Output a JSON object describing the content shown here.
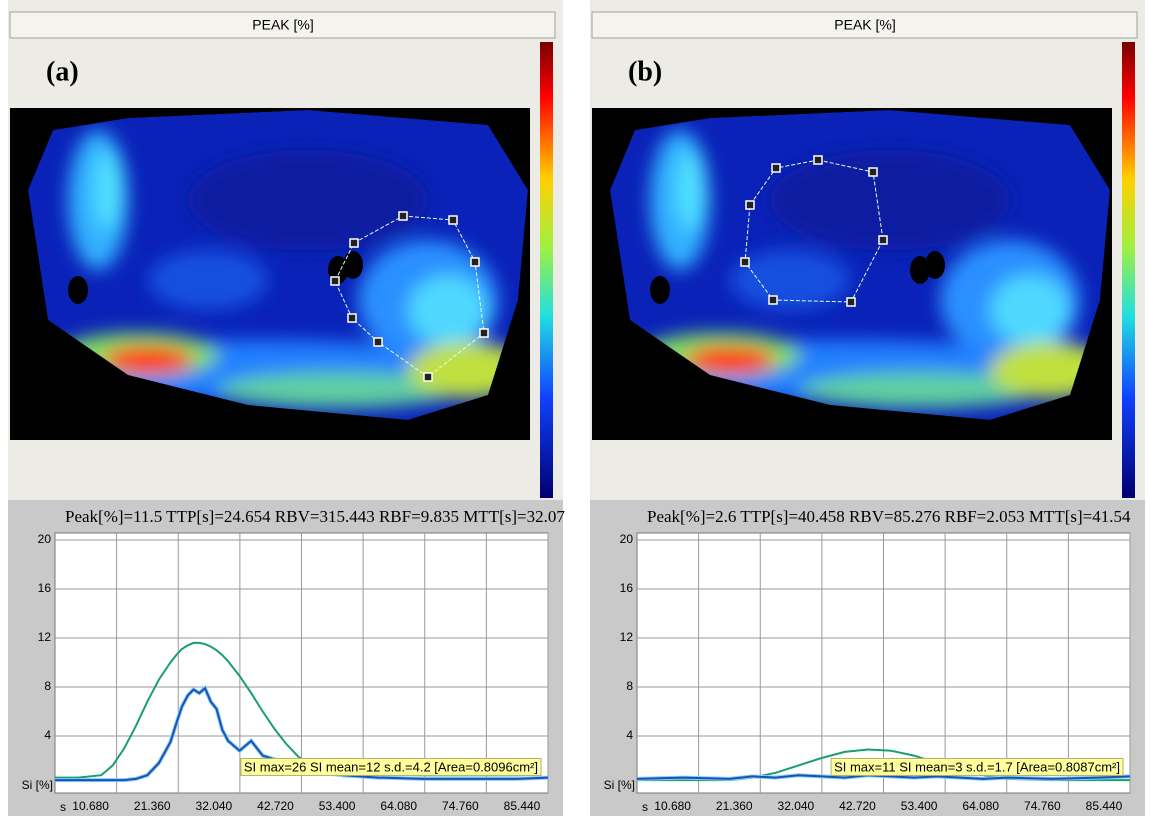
{
  "chart_data": [
    {
      "type": "line",
      "image_title": "PEAK [%]",
      "panel_label": "(a)",
      "title": "Peak[%]=11.5  TTP[s]=24.654  RBV=315.443  RBF=9.835  MTT[s]=32.07",
      "x_label": "s",
      "y_label": "Si [%]",
      "annotation": "SI max=26  SI mean=12  s.d.=4.2  [Area=0.8096cm²]",
      "x": [
        0,
        4,
        8,
        10,
        12,
        14,
        16,
        18,
        20,
        21,
        22,
        23,
        24,
        25,
        26,
        27,
        28,
        29,
        30,
        32,
        34,
        36,
        38,
        40,
        42,
        44,
        46,
        50,
        56,
        64,
        72,
        80,
        85.44
      ],
      "series": [
        {
          "color": "#1a9e6e",
          "values": [
            0.6,
            0.6,
            0.8,
            1.6,
            3,
            4.8,
            6.8,
            8.6,
            10,
            10.6,
            11.1,
            11.4,
            11.6,
            11.6,
            11.5,
            11.3,
            11,
            10.6,
            10.1,
            8.9,
            7.5,
            6,
            4.6,
            3.4,
            2.4,
            1.6,
            1.1,
            0.7,
            0.6,
            0.6,
            0.6,
            0.6,
            0.6
          ]
        },
        {
          "color": "#1f4fb0",
          "values": [
            0.4,
            0.4,
            0.4,
            0.4,
            0.4,
            0.5,
            0.8,
            1.8,
            3.5,
            5,
            6.4,
            7.3,
            7.8,
            7.5,
            7.9,
            6.8,
            6.2,
            4.5,
            3.6,
            2.8,
            3.6,
            2.4,
            2.1,
            1.8,
            1.5,
            1.2,
            1.0,
            0.8,
            0.6,
            0.5,
            0.5,
            0.5,
            0.6
          ]
        }
      ],
      "xlim": [
        0,
        85.44
      ],
      "xticks": [
        {
          "value": 10.68,
          "label": "10.680"
        },
        {
          "value": 21.36,
          "label": "21.360"
        },
        {
          "value": 32.04,
          "label": "32.040"
        },
        {
          "value": 42.72,
          "label": "42.720"
        },
        {
          "value": 53.4,
          "label": "53.400"
        },
        {
          "value": 64.08,
          "label": "64.080"
        },
        {
          "value": 74.76,
          "label": "74.760"
        },
        {
          "value": 85.44,
          "label": "85.440"
        }
      ],
      "ylim": [
        0,
        20
      ],
      "yticks": [
        4,
        8,
        12,
        16,
        20
      ],
      "grid": true
    },
    {
      "type": "line",
      "image_title": "PEAK [%]",
      "panel_label": "(b)",
      "title": "Peak[%]=2.6  TTP[s]=40.458  RBV=85.276  RBF=2.053  MTT[s]=41.54",
      "x_label": "s",
      "y_label": "Si [%]",
      "annotation": "SI max=11  SI mean=3  s.d.=1.7  [Area=0.8087cm²]",
      "x": [
        0,
        8,
        16,
        20,
        24,
        28,
        32,
        36,
        40,
        44,
        48,
        52,
        56,
        60,
        64,
        72,
        80,
        85.44
      ],
      "series": [
        {
          "color": "#1a9e6e",
          "values": [
            0.4,
            0.4,
            0.4,
            0.6,
            1,
            1.6,
            2.2,
            2.7,
            2.9,
            2.8,
            2.4,
            1.8,
            1.2,
            0.8,
            0.5,
            0.4,
            0.4,
            0.4
          ]
        },
        {
          "color": "#1f4fb0",
          "values": [
            0.5,
            0.6,
            0.5,
            0.7,
            0.6,
            0.8,
            0.7,
            0.6,
            0.8,
            0.7,
            0.6,
            0.7,
            0.6,
            0.5,
            0.6,
            0.5,
            0.6,
            0.7
          ]
        }
      ],
      "xlim": [
        0,
        85.44
      ],
      "xticks": [
        {
          "value": 10.68,
          "label": "10.680"
        },
        {
          "value": 21.36,
          "label": "21.360"
        },
        {
          "value": 32.04,
          "label": "32.040"
        },
        {
          "value": 42.72,
          "label": "42.720"
        },
        {
          "value": 53.4,
          "label": "53.400"
        },
        {
          "value": 64.08,
          "label": "64.080"
        },
        {
          "value": 74.76,
          "label": "74.760"
        },
        {
          "value": 85.44,
          "label": "85.440"
        }
      ],
      "ylim": [
        0,
        20
      ],
      "yticks": [
        4,
        8,
        12,
        16,
        20
      ],
      "grid": true
    }
  ]
}
